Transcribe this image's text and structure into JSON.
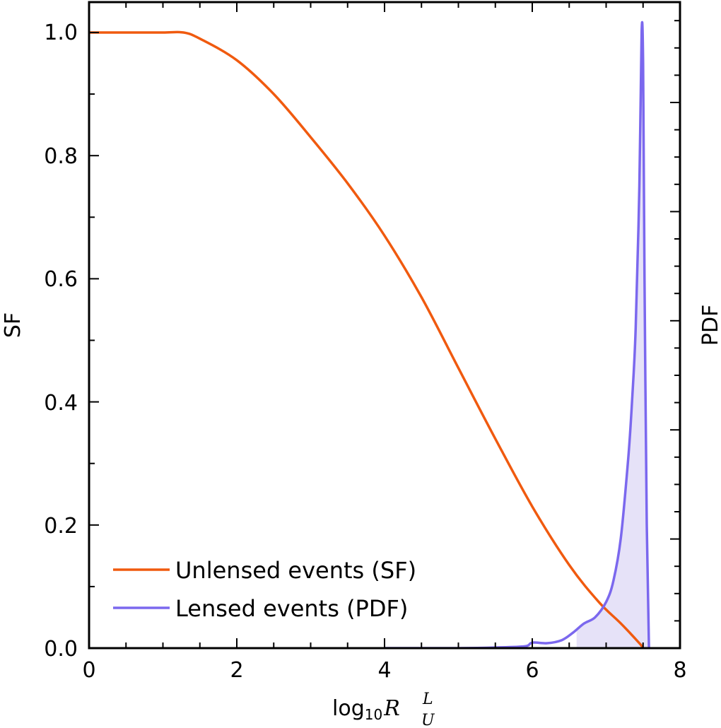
{
  "colors": {
    "sf_line": "#f05a0f",
    "pdf_line": "#7b68ee",
    "pdf_fill": "#e6e2f8",
    "axes": "#000000"
  },
  "chart_data": {
    "type": "line",
    "title": "",
    "xlabel": "log10 R_U^L",
    "xlabel_parts": {
      "base": "log",
      "sub": "10",
      "symbol": "R",
      "sup": "L",
      "sub2": "U"
    },
    "ylabel": "SF",
    "ylabel_right": "PDF",
    "xlim": [
      0,
      8
    ],
    "ylim": [
      0,
      1.05
    ],
    "xticks": [
      "0",
      "2",
      "4",
      "6",
      "8"
    ],
    "yticks": [
      "0.0",
      "0.2",
      "0.4",
      "0.6",
      "0.8",
      "1.0"
    ],
    "legend_position": "lower-left",
    "series": [
      {
        "name": "Unlensed events (SF)",
        "axis": "left",
        "x": [
          0,
          0.5,
          1.0,
          1.28,
          1.5,
          2.0,
          2.5,
          3.0,
          3.5,
          4.0,
          4.5,
          5.0,
          5.5,
          6.0,
          6.5,
          6.9,
          7.2,
          7.45,
          7.5
        ],
        "values": [
          1.0,
          1.0,
          1.0,
          1.0,
          0.99,
          0.955,
          0.9,
          0.83,
          0.755,
          0.67,
          0.57,
          0.455,
          0.34,
          0.23,
          0.135,
          0.075,
          0.04,
          0.008,
          0.0
        ]
      },
      {
        "name": "Lensed events (PDF)",
        "axis": "right",
        "x": [
          4.0,
          5.0,
          5.5,
          5.9,
          6.0,
          6.2,
          6.4,
          6.55,
          6.7,
          6.85,
          7.0,
          7.1,
          7.2,
          7.3,
          7.35,
          7.4,
          7.45,
          7.48,
          7.5,
          7.52,
          7.55,
          7.58
        ],
        "values": [
          0.0,
          0.0,
          0.001,
          0.003,
          0.009,
          0.008,
          0.013,
          0.025,
          0.04,
          0.05,
          0.075,
          0.11,
          0.18,
          0.31,
          0.4,
          0.52,
          0.75,
          1.0,
          0.95,
          0.6,
          0.2,
          0.0
        ]
      }
    ],
    "shaded_region": {
      "series": "Lensed events (PDF)",
      "x_from": 6.6,
      "x_to": 7.58
    }
  }
}
